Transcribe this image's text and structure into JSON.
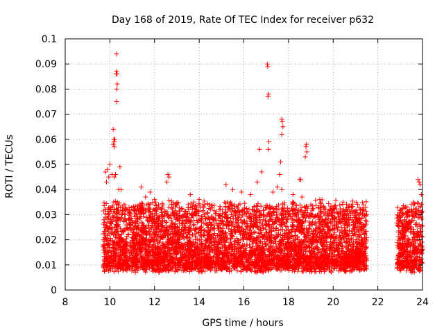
{
  "chart_data": {
    "type": "scatter",
    "title": "Day 168 of 2019, Rate Of TEC Index for receiver p632",
    "xlabel": "GPS time / hours",
    "ylabel": "ROTI / TECUs",
    "xlim": [
      8,
      24
    ],
    "ylim": [
      0,
      0.1
    ],
    "xticks": [
      8,
      10,
      12,
      14,
      16,
      18,
      20,
      22,
      24
    ],
    "xtick_labels": [
      "8",
      "10",
      "12",
      "14",
      "16",
      "18",
      "20",
      "22",
      "24"
    ],
    "yticks": [
      0,
      0.01,
      0.02,
      0.03,
      0.04,
      0.05,
      0.06,
      0.07,
      0.08,
      0.09,
      0.1
    ],
    "ytick_labels": [
      "0",
      "0.01",
      "0.02",
      "0.03",
      "0.04",
      "0.05",
      "0.06",
      "0.07",
      "0.08",
      "0.09",
      "0.1"
    ],
    "grid": true,
    "marker": "+",
    "color": "#ff0000",
    "series": [
      {
        "name": "ROTI",
        "points": [
          [
            9.8,
            0.047
          ],
          [
            9.9,
            0.048
          ],
          [
            10.0,
            0.05
          ],
          [
            10.1,
            0.046
          ],
          [
            9.85,
            0.043
          ],
          [
            9.95,
            0.045
          ],
          [
            10.3,
            0.094
          ],
          [
            10.3,
            0.087
          ],
          [
            10.32,
            0.086
          ],
          [
            10.28,
            0.086
          ],
          [
            10.33,
            0.082
          ],
          [
            10.31,
            0.08
          ],
          [
            10.3,
            0.075
          ],
          [
            10.15,
            0.064
          ],
          [
            10.18,
            0.06
          ],
          [
            10.2,
            0.059
          ],
          [
            10.2,
            0.057
          ],
          [
            10.15,
            0.058
          ],
          [
            10.22,
            0.06
          ],
          [
            10.25,
            0.046
          ],
          [
            10.45,
            0.049
          ],
          [
            10.2,
            0.045
          ],
          [
            10.4,
            0.04
          ],
          [
            10.5,
            0.04
          ],
          [
            11.4,
            0.041
          ],
          [
            11.6,
            0.037
          ],
          [
            11.8,
            0.039
          ],
          [
            12.6,
            0.046
          ],
          [
            12.65,
            0.045
          ],
          [
            12.55,
            0.043
          ],
          [
            12.0,
            0.036
          ],
          [
            13.0,
            0.034
          ],
          [
            13.6,
            0.038
          ],
          [
            14.0,
            0.036
          ],
          [
            15.2,
            0.042
          ],
          [
            15.5,
            0.04
          ],
          [
            15.9,
            0.039
          ],
          [
            16.3,
            0.038
          ],
          [
            16.6,
            0.043
          ],
          [
            16.7,
            0.056
          ],
          [
            16.8,
            0.047
          ],
          [
            17.05,
            0.09
          ],
          [
            17.07,
            0.089
          ],
          [
            17.1,
            0.078
          ],
          [
            17.08,
            0.077
          ],
          [
            17.12,
            0.059
          ],
          [
            17.1,
            0.056
          ],
          [
            17.7,
            0.068
          ],
          [
            17.72,
            0.067
          ],
          [
            17.75,
            0.065
          ],
          [
            17.7,
            0.062
          ],
          [
            17.65,
            0.051
          ],
          [
            17.6,
            0.046
          ],
          [
            17.7,
            0.04
          ],
          [
            18.5,
            0.044
          ],
          [
            18.55,
            0.044
          ],
          [
            18.8,
            0.058
          ],
          [
            18.78,
            0.057
          ],
          [
            18.82,
            0.055
          ],
          [
            18.75,
            0.053
          ],
          [
            17.3,
            0.039
          ],
          [
            17.5,
            0.041
          ],
          [
            18.2,
            0.038
          ],
          [
            18.6,
            0.037
          ],
          [
            19.0,
            0.034
          ],
          [
            19.4,
            0.036
          ],
          [
            20.5,
            0.03
          ],
          [
            21.0,
            0.031
          ],
          [
            21.2,
            0.027
          ],
          [
            23.8,
            0.044
          ],
          [
            23.85,
            0.043
          ],
          [
            23.9,
            0.042
          ],
          [
            23.3,
            0.031
          ],
          [
            23.5,
            0.032
          ],
          [
            23.95,
            0.038
          ],
          [
            23.2,
            0.028
          ],
          [
            23.6,
            0.035
          ]
        ],
        "dense_bands": [
          {
            "x_start": 9.7,
            "x_end": 21.5,
            "y_low": 0.005,
            "y_high": 0.03
          },
          {
            "x_start": 22.85,
            "x_end": 24.0,
            "y_low": 0.005,
            "y_high": 0.03
          }
        ]
      }
    ]
  }
}
